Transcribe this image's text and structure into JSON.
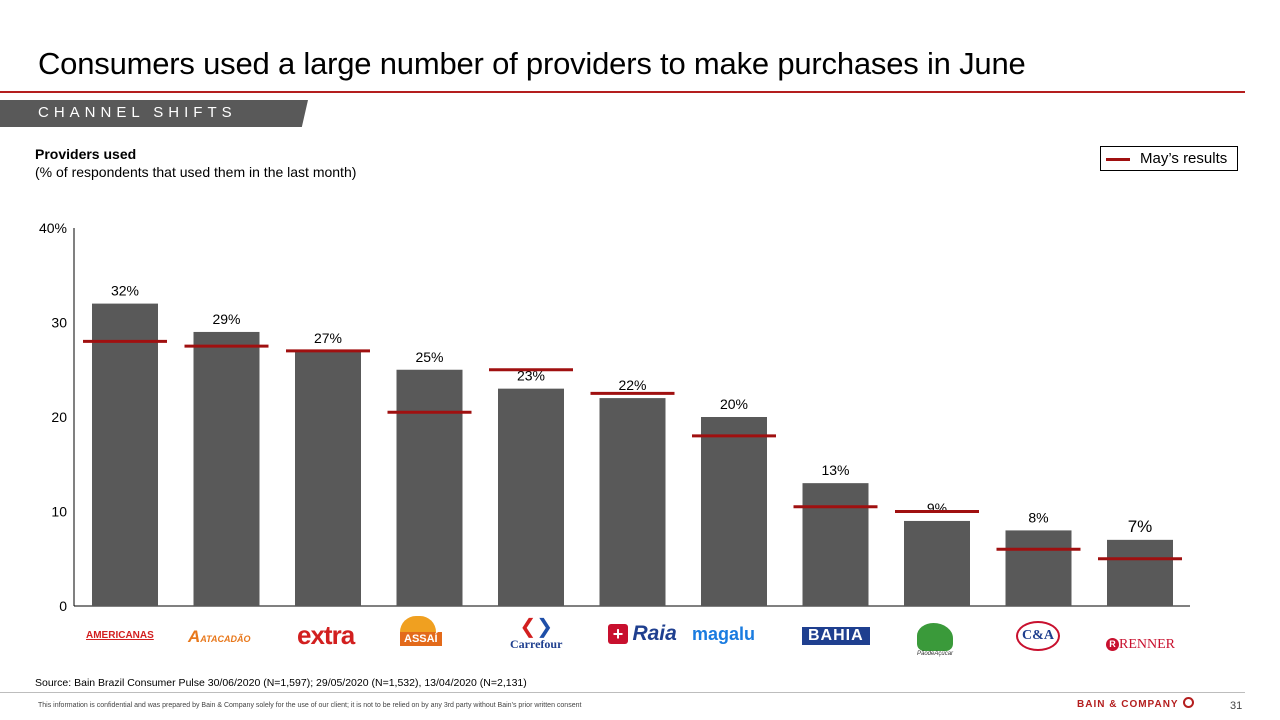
{
  "header": {
    "title": "Consumers used a large number of providers to make purchases in June",
    "section": "CHANNEL SHIFTS"
  },
  "chart_header": {
    "title": "Providers used",
    "subtitle": "(% of respondents that used them in the last month)"
  },
  "legend": {
    "label": "May’s results"
  },
  "logos": [
    "AMERICANAS",
    "ATACADÃO",
    "extra",
    "ASSAÍ",
    "Carrefour",
    "Raia",
    "magalu",
    "BAHIA",
    "PãodeAçúcar",
    "C&A",
    "RENNER"
  ],
  "colors": {
    "bar": "#595959",
    "marker": "#a01010",
    "accent": "#b41e1e"
  },
  "chart_data": {
    "type": "bar",
    "categories": [
      "Americanas",
      "Atacadão",
      "Extra",
      "Assaí",
      "Carrefour",
      "Drogasil Raia",
      "Magalu",
      "Casas Bahia",
      "Pão de Açúcar",
      "C&A",
      "Renner"
    ],
    "values": [
      32,
      29,
      27,
      25,
      23,
      22,
      20,
      13,
      9,
      8,
      7
    ],
    "data_labels": [
      "32%",
      "29%",
      "27%",
      "25%",
      "23%",
      "22%",
      "20%",
      "13%",
      "9%",
      "8%",
      "7%"
    ],
    "may_results": [
      28,
      27.5,
      27,
      20.5,
      25,
      22.5,
      18,
      10.5,
      10,
      6,
      5
    ],
    "ylim": [
      0,
      40
    ],
    "y_ticks": [
      0,
      10,
      20,
      30,
      40
    ],
    "y_tick_labels": [
      "0",
      "10",
      "20",
      "30",
      "40%"
    ],
    "grid": false,
    "legend_position": "top-right"
  },
  "footer": {
    "source": "Source: Bain Brazil Consumer Pulse 30/06/2020 (N=1,597); 29/05/2020 (N=1,532), 13/04/2020 (N=2,131)",
    "disclaimer": "This information is confidential and was prepared by Bain & Company solely for the use of our client; it is not to be relied on by any 3rd party without Bain’s prior written consent",
    "brand": "BAIN & COMPANY",
    "page": "31"
  }
}
